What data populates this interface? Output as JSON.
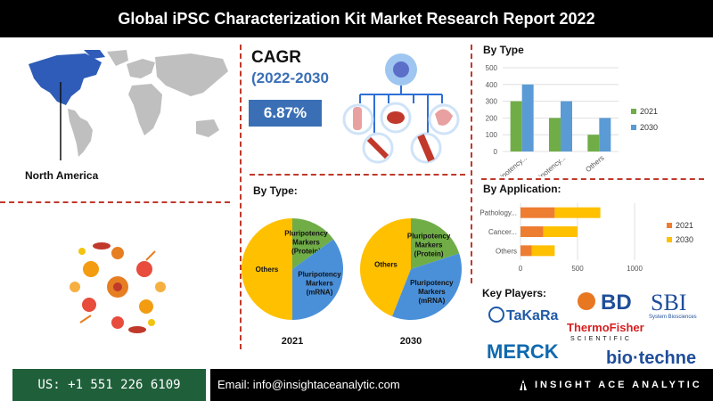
{
  "header": {
    "title": "Global iPSC Characterization Kit Market Research Report 2022"
  },
  "region": {
    "label": "North America"
  },
  "cagr": {
    "title": "CAGR",
    "period": "(2022-2030",
    "value": "6.87%"
  },
  "type_pies": {
    "title": "By Type:",
    "years": [
      "2021",
      "2030"
    ],
    "slice_labels": {
      "others": "Others",
      "protein": [
        "Pluripotency",
        "Markers",
        "(Protein)"
      ],
      "mrna": [
        "Pluripotency",
        "Markers",
        "(mRNA)"
      ]
    }
  },
  "key_players": {
    "title": "Key Players:",
    "logos": {
      "takara": "TaKaRa",
      "bd": "BD",
      "sbi": "SBI",
      "sbi_sub": "System Biosciences",
      "thermo": "ThermoFisher",
      "thermo_sub": "SCIENTIFIC",
      "merck": "MERCK",
      "biotechne": "bio·techne"
    }
  },
  "footer": {
    "phone": "US: +1 551 226 6109",
    "email": "Email: info@insightaceanalytic.com",
    "brand": "INSIGHT ACE ANALYTIC"
  },
  "colors": {
    "c2021": "#70ad47",
    "c2030": "#5b9bd5",
    "app2021": "#ed7d31",
    "app2030": "#ffc000",
    "pie_others": "#ffc000",
    "pie_protein": "#70ad47",
    "pie_mrna": "#4a90d9",
    "accent": "#3a6fb5"
  },
  "chart_data": [
    {
      "type": "bar",
      "title": "By Type",
      "categories": [
        "Pluripotency...",
        "Pluripotency...",
        "Others"
      ],
      "series": [
        {
          "name": "2021",
          "values": [
            300,
            200,
            100
          ]
        },
        {
          "name": "2030",
          "values": [
            400,
            300,
            200
          ]
        }
      ],
      "ylim": [
        0,
        500
      ],
      "yticks": [
        0,
        100,
        200,
        300,
        400,
        500
      ],
      "legend": "right"
    },
    {
      "type": "bar",
      "orientation": "horizontal",
      "stacked": true,
      "title": "By Application:",
      "categories": [
        "Pathology...",
        "Cancer...",
        "Others"
      ],
      "series": [
        {
          "name": "2021",
          "values": [
            300,
            200,
            100
          ]
        },
        {
          "name": "2030",
          "values": [
            400,
            300,
            200
          ]
        }
      ],
      "xlim": [
        0,
        1000
      ],
      "xticks": [
        0,
        500,
        1000
      ],
      "legend": "right"
    },
    {
      "type": "pie",
      "title": "2021",
      "slices": [
        {
          "label": "Others",
          "value": 50
        },
        {
          "label": "Pluripotency Markers (Protein)",
          "value": 15
        },
        {
          "label": "Pluripotency Markers (mRNA)",
          "value": 35
        }
      ]
    },
    {
      "type": "pie",
      "title": "2030",
      "slices": [
        {
          "label": "Others",
          "value": 44
        },
        {
          "label": "Pluripotency Markers (Protein)",
          "value": 20
        },
        {
          "label": "Pluripotency Markers (mRNA)",
          "value": 36
        }
      ]
    }
  ]
}
